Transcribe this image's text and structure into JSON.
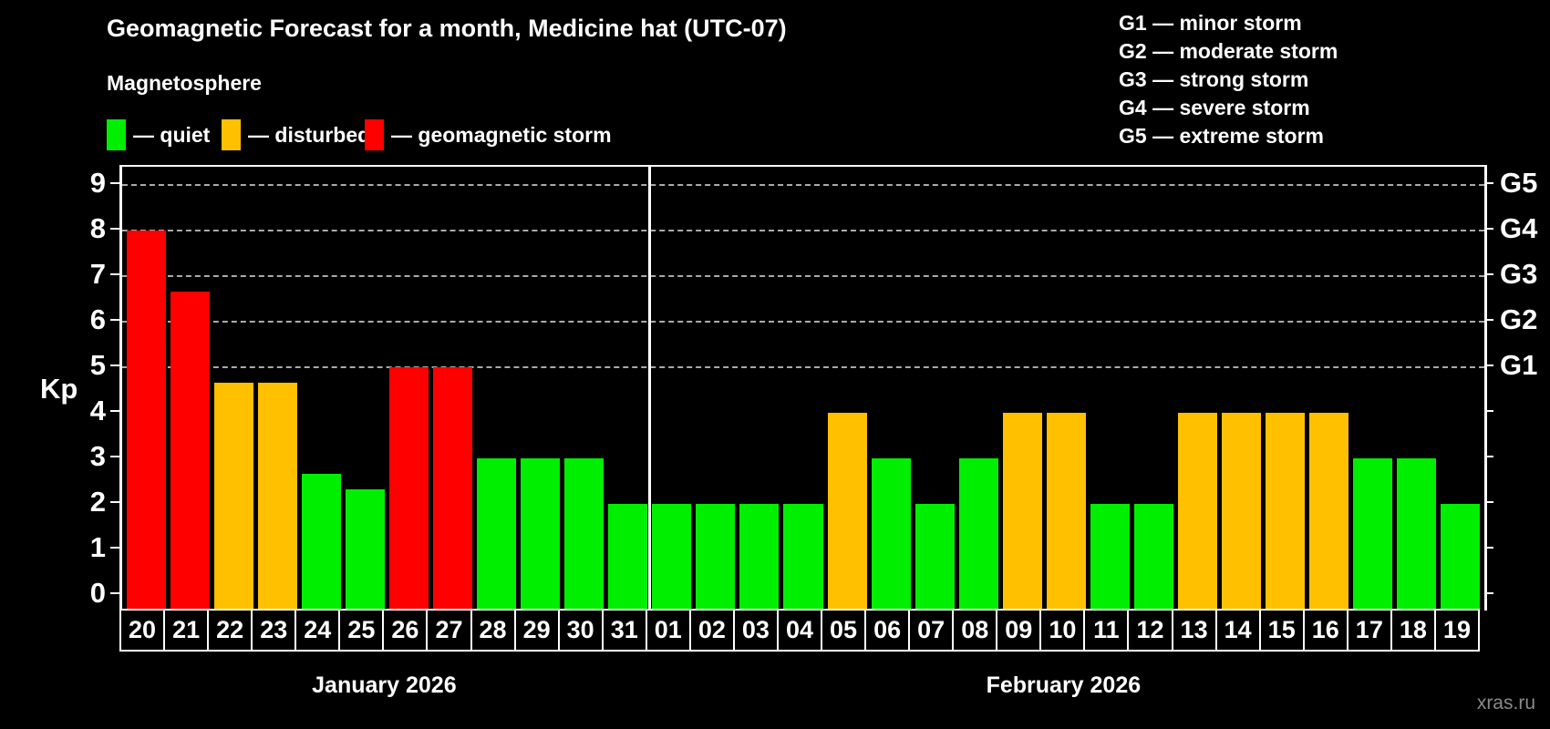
{
  "title": "Geomagnetic Forecast for a month, Medicine hat (UTC-07)",
  "subtitle": "Magnetosphere",
  "legend": {
    "items": [
      {
        "key": "quiet",
        "label": "— quiet",
        "color": "#00ee00"
      },
      {
        "key": "disturbed",
        "label": "— disturbed",
        "color": "#ffc000"
      },
      {
        "key": "storm",
        "label": "— geomagnetic storm",
        "color": "#ff0000"
      }
    ]
  },
  "g_legend": [
    "G1 — minor storm",
    "G2 — moderate storm",
    "G3 — strong storm",
    "G4 — severe storm",
    "G5 — extreme storm"
  ],
  "watermark": "xras.ru",
  "chart_data": {
    "type": "bar",
    "title": "Geomagnetic Forecast for a month, Medicine hat (UTC-07)",
    "ylabel": "Kp",
    "ylim": [
      0,
      9.4
    ],
    "grid": "dashed horizontal at Kp 5-9",
    "yticks": [
      0,
      1,
      2,
      3,
      4,
      5,
      6,
      7,
      8,
      9
    ],
    "gridlines": [
      5,
      6,
      7,
      8,
      9
    ],
    "right_axis": [
      {
        "level": 5,
        "label": "G1"
      },
      {
        "level": 6,
        "label": "G2"
      },
      {
        "level": 7,
        "label": "G3"
      },
      {
        "level": 8,
        "label": "G4"
      },
      {
        "level": 9,
        "label": "G5"
      }
    ],
    "months": [
      {
        "label": "January 2026",
        "days": 12
      },
      {
        "label": "February 2026",
        "days": 19
      }
    ],
    "categories": [
      "20",
      "21",
      "22",
      "23",
      "24",
      "25",
      "26",
      "27",
      "28",
      "29",
      "30",
      "31",
      "01",
      "02",
      "03",
      "04",
      "05",
      "06",
      "07",
      "08",
      "09",
      "10",
      "11",
      "12",
      "13",
      "14",
      "15",
      "16",
      "17",
      "18",
      "19"
    ],
    "series": [
      {
        "name": "Kp forecast",
        "values": [
          8.0,
          6.67,
          4.67,
          4.67,
          2.67,
          2.33,
          5.0,
          5.0,
          3.0,
          3.0,
          3.0,
          2.0,
          2.0,
          2.0,
          2.0,
          2.0,
          4.0,
          3.0,
          2.0,
          3.0,
          4.0,
          4.0,
          2.0,
          2.0,
          4.0,
          4.0,
          4.0,
          4.0,
          3.0,
          3.0,
          2.0
        ],
        "status": [
          "storm",
          "storm",
          "disturbed",
          "disturbed",
          "quiet",
          "quiet",
          "storm",
          "storm",
          "quiet",
          "quiet",
          "quiet",
          "quiet",
          "quiet",
          "quiet",
          "quiet",
          "quiet",
          "disturbed",
          "quiet",
          "quiet",
          "quiet",
          "disturbed",
          "disturbed",
          "quiet",
          "quiet",
          "disturbed",
          "disturbed",
          "disturbed",
          "disturbed",
          "quiet",
          "quiet",
          "quiet"
        ]
      }
    ]
  }
}
